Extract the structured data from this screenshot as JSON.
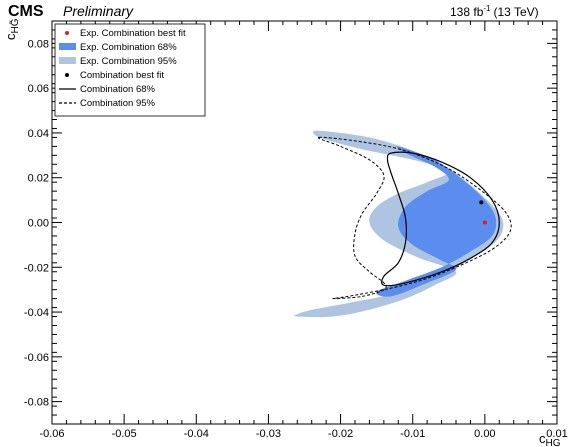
{
  "header": {
    "experiment": "CMS",
    "status": "Preliminary",
    "luminosity": "138 fb",
    "lumi_exponent": "-1",
    "energy": "(13 TeV)"
  },
  "chart_data": {
    "type": "contour",
    "xlabel": "c",
    "xlabel_sub": "HG",
    "ylabel": "c",
    "ylabel_sub": "HG̃",
    "xlim": [
      -0.06,
      0.01
    ],
    "ylim": [
      -0.09,
      0.09
    ],
    "x_ticks": [
      -0.06,
      -0.05,
      -0.04,
      -0.03,
      -0.02,
      -0.01,
      0.0,
      0.01
    ],
    "x_tick_labels": [
      "-0.06",
      "-0.05",
      "-0.04",
      "-0.03",
      "-0.02",
      "-0.01",
      "0.00",
      "0.01"
    ],
    "y_ticks": [
      -0.08,
      -0.06,
      -0.04,
      -0.02,
      0.0,
      0.02,
      0.04,
      0.06,
      0.08
    ],
    "y_tick_labels": [
      "-0.08",
      "-0.06",
      "-0.04",
      "-0.02",
      "0.00",
      "0.02",
      "0.04",
      "0.06",
      "0.08"
    ],
    "legend": {
      "placement": "top-left",
      "entries": [
        {
          "key": "exp_best",
          "label": "Exp. Combination best fit"
        },
        {
          "key": "exp_68",
          "label": "Exp. Combination 68%"
        },
        {
          "key": "exp_95",
          "label": "Exp. Combination 95%"
        },
        {
          "key": "obs_best",
          "label": "Combination best fit"
        },
        {
          "key": "obs_68",
          "label": "Combination 68%"
        },
        {
          "key": "obs_95",
          "label": "Combination 95%"
        }
      ]
    },
    "colors": {
      "exp_68": "#5b8def",
      "exp_95": "#afc4e0",
      "exp_best": "#e8191b",
      "obs_best": "#000000"
    },
    "points": {
      "exp_best": {
        "x": 0.0,
        "y": 0.0
      },
      "obs_best": {
        "x": -0.0005,
        "y": 0.009
      }
    },
    "contours": {
      "exp_95": [
        [
          -0.023,
          0.041
        ],
        [
          -0.016,
          0.038
        ],
        [
          -0.01,
          0.032
        ],
        [
          -0.005,
          0.024
        ],
        [
          -0.001,
          0.014
        ],
        [
          0.002,
          0.004
        ],
        [
          0.0025,
          -0.003
        ],
        [
          0.001,
          -0.01
        ],
        [
          -0.003,
          -0.018
        ],
        [
          -0.008,
          -0.026
        ],
        [
          -0.013,
          -0.032
        ],
        [
          -0.019,
          -0.036
        ],
        [
          -0.024,
          -0.039
        ],
        [
          -0.026,
          -0.041
        ],
        [
          -0.026,
          -0.042
        ],
        [
          -0.021,
          -0.042
        ],
        [
          -0.016,
          -0.039
        ],
        [
          -0.011,
          -0.034
        ],
        [
          -0.007,
          -0.028
        ],
        [
          -0.004,
          -0.022
        ],
        [
          -0.009,
          -0.016
        ],
        [
          -0.014,
          -0.008
        ],
        [
          -0.016,
          0.0
        ],
        [
          -0.015,
          0.007
        ],
        [
          -0.012,
          0.013
        ],
        [
          -0.008,
          0.018
        ],
        [
          -0.005,
          0.023
        ],
        [
          -0.01,
          0.028
        ],
        [
          -0.016,
          0.032
        ],
        [
          -0.021,
          0.036
        ],
        [
          -0.0235,
          0.039
        ]
      ],
      "exp_68": [
        [
          -0.012,
          0.034
        ],
        [
          -0.007,
          0.028
        ],
        [
          -0.003,
          0.019
        ],
        [
          0.0,
          0.01
        ],
        [
          0.0015,
          0.002
        ],
        [
          0.001,
          -0.006
        ],
        [
          -0.002,
          -0.013
        ],
        [
          -0.006,
          -0.02
        ],
        [
          -0.011,
          -0.026
        ],
        [
          -0.015,
          -0.031
        ],
        [
          -0.013,
          -0.033
        ],
        [
          -0.008,
          -0.027
        ],
        [
          -0.004,
          -0.021
        ],
        [
          -0.006,
          -0.017
        ],
        [
          -0.01,
          -0.01
        ],
        [
          -0.012,
          -0.002
        ],
        [
          -0.011,
          0.007
        ],
        [
          -0.008,
          0.014
        ],
        [
          -0.005,
          0.019
        ],
        [
          -0.007,
          0.025
        ],
        [
          -0.011,
          0.031
        ]
      ],
      "obs_68": [
        [
          -0.013,
          0.031
        ],
        [
          -0.01,
          0.031
        ],
        [
          -0.006,
          0.027
        ],
        [
          -0.002,
          0.02
        ],
        [
          0.001,
          0.01
        ],
        [
          0.002,
          0.0
        ],
        [
          0.001,
          -0.009
        ],
        [
          -0.002,
          -0.016
        ],
        [
          -0.006,
          -0.022
        ],
        [
          -0.011,
          -0.027
        ],
        [
          -0.014,
          -0.028
        ],
        [
          -0.014,
          -0.024
        ],
        [
          -0.012,
          -0.018
        ],
        [
          -0.011,
          -0.009
        ],
        [
          -0.011,
          0.002
        ],
        [
          -0.012,
          0.013
        ],
        [
          -0.013,
          0.022
        ],
        [
          -0.0135,
          0.028
        ]
      ],
      "obs_95": [
        [
          -0.023,
          0.038
        ],
        [
          -0.017,
          0.036
        ],
        [
          -0.011,
          0.032
        ],
        [
          -0.005,
          0.024
        ],
        [
          0.0,
          0.013
        ],
        [
          0.003,
          0.004
        ],
        [
          0.0035,
          -0.004
        ],
        [
          0.001,
          -0.012
        ],
        [
          -0.004,
          -0.02
        ],
        [
          -0.009,
          -0.026
        ],
        [
          -0.014,
          -0.03
        ],
        [
          -0.019,
          -0.033
        ],
        [
          -0.021,
          -0.034
        ],
        [
          -0.017,
          -0.033
        ],
        [
          -0.014,
          -0.03
        ],
        [
          -0.014,
          -0.027
        ],
        [
          -0.016,
          -0.022
        ],
        [
          -0.018,
          -0.015
        ],
        [
          -0.018,
          -0.005
        ],
        [
          -0.017,
          0.004
        ],
        [
          -0.015,
          0.013
        ],
        [
          -0.014,
          0.021
        ],
        [
          -0.016,
          0.028
        ],
        [
          -0.02,
          0.034
        ]
      ]
    }
  }
}
